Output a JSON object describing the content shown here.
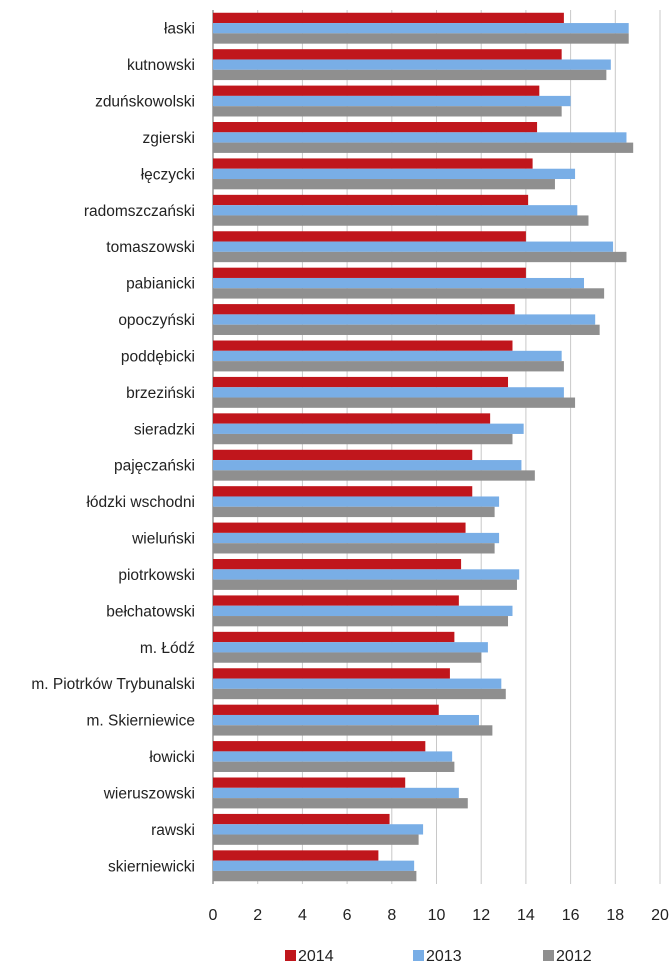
{
  "chart_data": {
    "type": "bar",
    "orientation": "horizontal",
    "categories": [
      "łaski",
      "kutnowski",
      "zduńskowolski",
      "zgierski",
      "łęczycki",
      "radomszczański",
      "tomaszowski",
      "pabianicki",
      "opoczyński",
      "poddębicki",
      "brzeziński",
      "sieradzki",
      "pajęczański",
      "łódzki wschodni",
      "wieluński",
      "piotrkowski",
      "bełchatowski",
      "m. Łódź",
      "m. Piotrków Trybunalski",
      "m. Skierniewice",
      "łowicki",
      "wieruszowski",
      "rawski",
      "skierniewicki"
    ],
    "series": [
      {
        "name": "2014",
        "color": "#c0161c",
        "values": [
          15.7,
          15.6,
          14.6,
          14.5,
          14.3,
          14.1,
          14.0,
          14.0,
          13.5,
          13.4,
          13.2,
          12.4,
          11.6,
          11.6,
          11.3,
          11.1,
          11.0,
          10.8,
          10.6,
          10.1,
          9.5,
          8.6,
          7.9,
          7.4
        ]
      },
      {
        "name": "2013",
        "color": "#79aee6",
        "values": [
          18.6,
          17.8,
          16.0,
          18.5,
          16.2,
          16.3,
          17.9,
          16.6,
          17.1,
          15.6,
          15.7,
          13.9,
          13.8,
          12.8,
          12.8,
          13.7,
          13.4,
          12.3,
          12.9,
          11.9,
          10.7,
          11.0,
          9.4,
          9.0
        ]
      },
      {
        "name": "2012",
        "color": "#8f8f8f",
        "values": [
          18.6,
          17.6,
          15.6,
          18.8,
          15.3,
          16.8,
          18.5,
          17.5,
          17.3,
          15.7,
          16.2,
          13.4,
          14.4,
          12.6,
          12.6,
          13.6,
          13.2,
          12.0,
          13.1,
          12.5,
          10.8,
          11.4,
          9.2,
          9.1
        ]
      }
    ],
    "x_ticks": [
      "0",
      "2",
      "4",
      "6",
      "8",
      "10",
      "12",
      "14",
      "16",
      "18",
      "20"
    ],
    "xlim": [
      0,
      20
    ],
    "grid": true,
    "legend_position": "bottom",
    "title": "",
    "xlabel": "",
    "ylabel": ""
  }
}
